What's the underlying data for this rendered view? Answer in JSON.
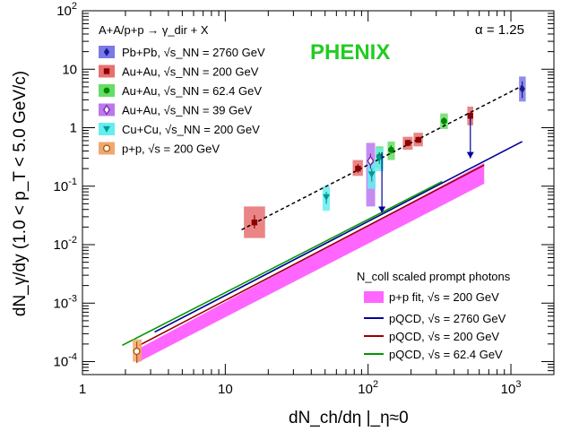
{
  "chart_data": {
    "type": "scatter",
    "title": "",
    "xlabel": "dN_ch/dη |_η≈0",
    "ylabel": "dN_γ/dy  (1.0 < p_T < 5.0 GeV/c)",
    "xscale": "log",
    "yscale": "log",
    "xlim": [
      1,
      2000
    ],
    "ylim": [
      6e-05,
      100
    ],
    "x_ticks": [
      "1",
      "10",
      "10^2",
      "10^3"
    ],
    "y_ticks": [
      "10^-4",
      "10^-3",
      "10^-2",
      "10^-1",
      "1",
      "10",
      "10^2"
    ],
    "annotations": {
      "alpha": "α = 1.25",
      "experiment": "PHENIX",
      "reaction": "A+A/p+p → γ_dir + X",
      "scaled_title": "N_coll scaled prompt photons"
    },
    "colors": {
      "phenix": "#22cc22",
      "fit_band": "#ff66ff",
      "pqcd_2760": "#000099",
      "pqcd_200": "#990000",
      "pqcd_62": "#009900"
    },
    "series": [
      {
        "name": "Pb+Pb, √s_NN = 2760 GeV",
        "marker": "diamond",
        "color": "#1a1a99",
        "box": "#7a7ae6",
        "points": [
          {
            "x": 1200,
            "y": 4.6,
            "ylo": 3.2,
            "yhi": 6.2,
            "bx": [
              1140,
              1270
            ],
            "by": [
              2.8,
              7.5
            ]
          }
        ]
      },
      {
        "name": "Au+Au, √s_NN = 200 GeV",
        "marker": "square",
        "color": "#8b0000",
        "box": "#e87070",
        "points": [
          {
            "x": 16,
            "y": 0.024,
            "ylo": 0.019,
            "yhi": 0.032,
            "bx": [
              13.5,
              19
            ],
            "by": [
              0.013,
              0.045
            ]
          },
          {
            "x": 85,
            "y": 0.2,
            "ylo": 0.17,
            "yhi": 0.24,
            "bx": [
              78,
              92
            ],
            "by": [
              0.15,
              0.28
            ]
          },
          {
            "x": 190,
            "y": 0.55,
            "ylo": 0.48,
            "yhi": 0.62,
            "bx": [
              175,
              205
            ],
            "by": [
              0.42,
              0.7
            ]
          },
          {
            "x": 225,
            "y": 0.62,
            "ylo": 0.55,
            "yhi": 0.7,
            "bx": [
              208,
              242
            ],
            "by": [
              0.48,
              0.82
            ]
          },
          {
            "x": 520,
            "y": 1.6,
            "ylo": 1.4,
            "yhi": 1.8,
            "bx": [
              495,
              545
            ],
            "by": [
              1.1,
              2.3
            ]
          }
        ]
      },
      {
        "name": "Au+Au, √s_NN = 62.4 GeV",
        "marker": "circle",
        "color": "#008800",
        "box": "#66dd66",
        "points": [
          {
            "x": 120,
            "y": 0.32,
            "ylo": 0.26,
            "yhi": 0.38,
            "bx": [
              113,
              128
            ],
            "by": [
              0.2,
              0.48
            ]
          },
          {
            "x": 145,
            "y": 0.42,
            "ylo": 0.36,
            "yhi": 0.5,
            "bx": [
              137,
              154
            ],
            "by": [
              0.28,
              0.58
            ]
          },
          {
            "x": 340,
            "y": 1.3,
            "ylo": 1.1,
            "yhi": 1.5,
            "bx": [
              320,
              362
            ],
            "by": [
              0.95,
              1.75
            ]
          }
        ]
      },
      {
        "name": "Au+Au, √s_NN = 39 GeV",
        "marker": "open-diamond",
        "color": "#7722aa",
        "box": "#bb77ee",
        "points": [
          {
            "x": 104,
            "y": 0.27,
            "ylo": 0.2,
            "yhi": 0.36,
            "bx": [
              97,
              112
            ],
            "by": [
              0.045,
              0.55
            ]
          }
        ]
      },
      {
        "name": "Cu+Cu, √s_NN = 200 GeV",
        "marker": "triangle-down",
        "color": "#009999",
        "box": "#66eeee",
        "points": [
          {
            "x": 51,
            "y": 0.065,
            "ylo": 0.05,
            "yhi": 0.08,
            "bx": [
              48,
              54
            ],
            "by": [
              0.038,
              0.1
            ]
          },
          {
            "x": 106,
            "y": 0.16,
            "ylo": 0.12,
            "yhi": 0.2,
            "bx": [
              99,
              113
            ],
            "by": [
              0.09,
              0.27
            ]
          },
          {
            "x": 120,
            "y": 0.3,
            "ylo": 0.24,
            "yhi": 0.36,
            "bx": [
              113,
              128
            ],
            "by": [
              0.18,
              0.45
            ]
          }
        ]
      },
      {
        "name": "p+p, √s = 200 GeV",
        "marker": "open-circle",
        "color": "#aa5500",
        "box": "#f0a870",
        "points": [
          {
            "x": 2.4,
            "y": 0.00015,
            "ylo": 9.5e-05,
            "yhi": 0.00022,
            "bx": [
              2.25,
              2.6
            ],
            "by": [
              0.0001,
              0.00024
            ]
          }
        ]
      }
    ],
    "fit_line": {
      "x": [
        13,
        1200
      ],
      "y": [
        0.018,
        5.2
      ]
    },
    "upper_limits": [
      {
        "x": 125,
        "ytop": 0.38,
        "ybot": 0.035
      },
      {
        "x": 520,
        "ytop": 1.5,
        "ybot": 0.3
      }
    ],
    "fit_band": {
      "x_start": 2.4,
      "x_end": 650,
      "low_start": 9.5e-05,
      "low_end": 0.11,
      "high_start": 0.00016,
      "high_end": 0.25
    },
    "pqcd_curves": [
      {
        "name": "pQCD, √s = 2760 GeV",
        "color": "#000099",
        "x": [
          3.2,
          1200
        ],
        "y": [
          0.00032,
          0.58
        ]
      },
      {
        "name": "pQCD, √s = 200 GeV",
        "color": "#990000",
        "x": [
          2.5,
          650
        ],
        "y": [
          0.00019,
          0.23
        ]
      },
      {
        "name": "pQCD, √s = 62.4 GeV",
        "color": "#009900",
        "x": [
          1.9,
          330
        ],
        "y": [
          0.00019,
          0.12
        ]
      }
    ],
    "legend_right": {
      "band_label": "p+p fit, √s = 200 GeV",
      "band_label_color": "#990099"
    }
  }
}
